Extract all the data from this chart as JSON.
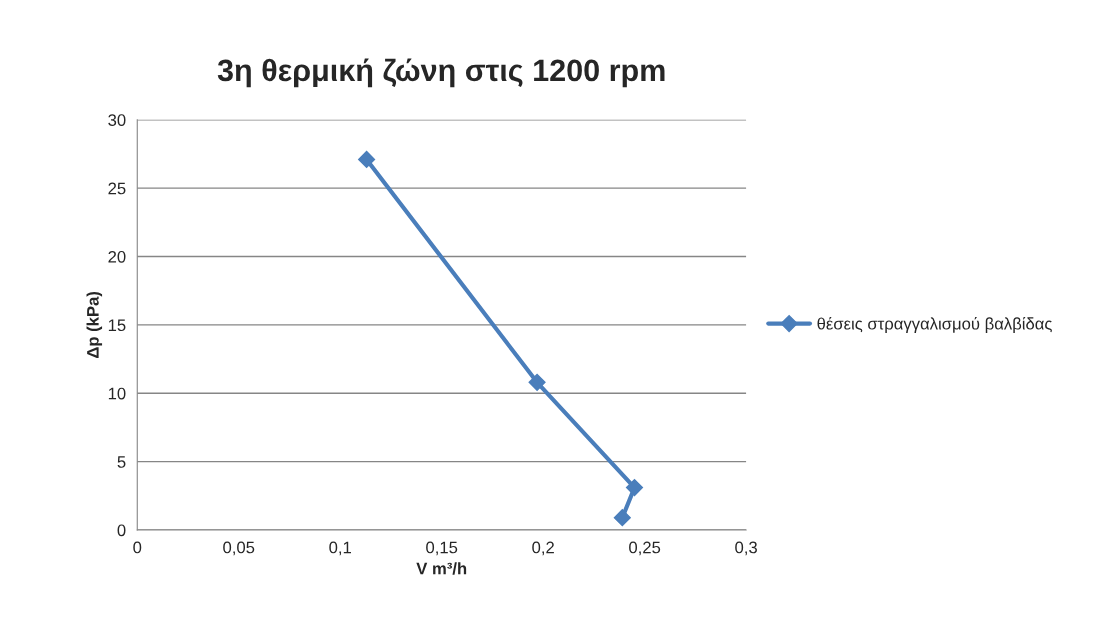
{
  "chart_data": {
    "type": "line",
    "title": "3η θερμική ζώνη στις 1200 rpm",
    "xlabel": "V m³/h",
    "ylabel": "Δp (kPa)",
    "series": [
      {
        "name": "θέσεις στραγγαλισμού βαλβίδας",
        "color": "#4a7ebb",
        "x": [
          0.113,
          0.197,
          0.245,
          0.239
        ],
        "values": [
          27.1,
          10.8,
          3.1,
          0.9
        ]
      }
    ],
    "xlim": [
      0,
      0.3
    ],
    "xticks": [
      0,
      {
        "value": 0.05,
        "label": "0,05"
      },
      {
        "value": 0.1,
        "label": "0,1"
      },
      {
        "value": 0.15,
        "label": "0,15"
      },
      {
        "value": 0.2,
        "label": "0,2"
      },
      {
        "value": 0.25,
        "label": "0,25"
      },
      {
        "value": 0.3,
        "label": "0,3"
      }
    ],
    "ylim": [
      0,
      30
    ],
    "yticks": [
      0,
      5,
      10,
      15,
      20,
      25,
      30
    ],
    "grid": "y",
    "legend": "right",
    "marker": "diamond",
    "line_style": "solid"
  }
}
